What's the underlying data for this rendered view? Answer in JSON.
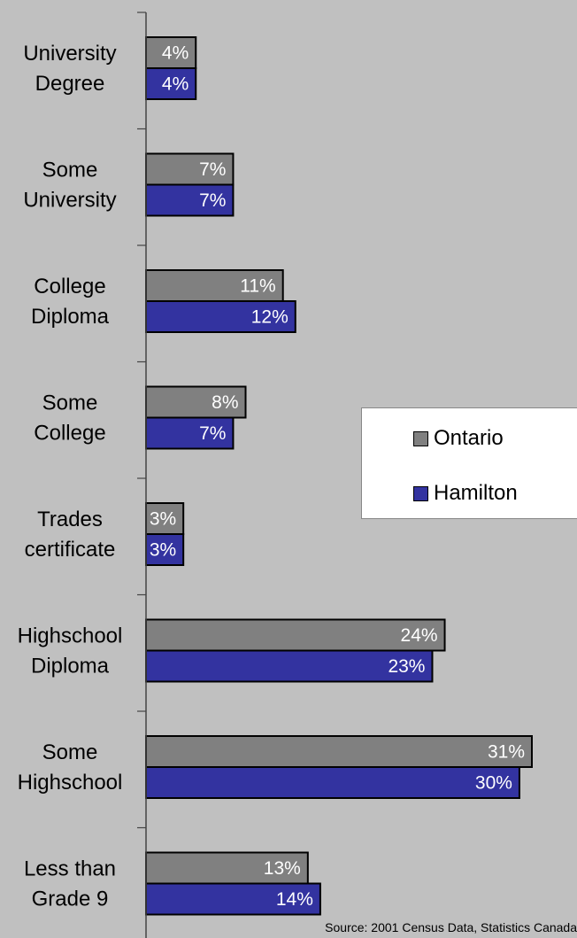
{
  "chart_data": {
    "type": "bar",
    "orientation": "horizontal",
    "categories": [
      [
        "University",
        "Degree"
      ],
      [
        "Some",
        "University"
      ],
      [
        "College",
        "Diploma"
      ],
      [
        "Some",
        "College"
      ],
      [
        "Trades",
        "certificate"
      ],
      [
        "Highschool",
        "Diploma"
      ],
      [
        "Some",
        "Highschool"
      ],
      [
        "Less than",
        "Grade 9"
      ]
    ],
    "series": [
      {
        "name": "Ontario",
        "color": "#808080",
        "values": [
          4,
          7,
          11,
          8,
          3,
          24,
          31,
          13
        ],
        "labels": [
          "4%",
          "7%",
          "11%",
          "8%",
          "3%",
          "24%",
          "31%",
          "13%"
        ]
      },
      {
        "name": "Hamilton",
        "color": "#3333a0",
        "values": [
          4,
          7,
          12,
          7,
          3,
          23,
          30,
          14
        ],
        "labels": [
          "4%",
          "7%",
          "12%",
          "7%",
          "3%",
          "23%",
          "30%",
          "14%"
        ]
      }
    ],
    "xlim": [
      0,
      32
    ],
    "grid": false,
    "legend_position": "right"
  },
  "source": "Source: 2001 Census Data, Statistics Canada"
}
